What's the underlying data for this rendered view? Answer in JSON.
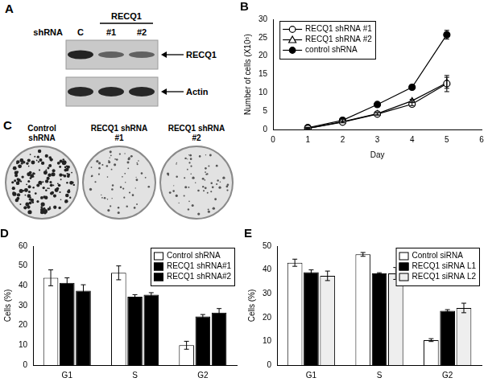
{
  "chart_data": [
    {
      "type": "line",
      "title": "B",
      "x_label": "Day",
      "y_label": "Number of cells (X10⁵)",
      "x": [
        1,
        2,
        3,
        4,
        5
      ],
      "series": [
        {
          "name": "RECQ1 shRNA #1",
          "color": "#000000",
          "marker": "open-circle",
          "values": [
            0.3,
            2.0,
            4.2,
            6.9,
            12.5
          ],
          "errors": [
            0.1,
            0.2,
            0.3,
            0.4,
            2.2
          ]
        },
        {
          "name": "RECQ1 shRNA #2",
          "color": "#000000",
          "marker": "open-triangle",
          "values": [
            0.3,
            2.1,
            4.3,
            7.8,
            12.7
          ],
          "errors": [
            0.1,
            0.2,
            0.3,
            0.4,
            1.5
          ]
        },
        {
          "name": "control shRNA",
          "color": "#000000",
          "marker": "circle",
          "values": [
            0.5,
            2.5,
            6.8,
            11.5,
            25.8
          ],
          "errors": [
            0.1,
            0.2,
            0.3,
            0.3,
            1.2
          ]
        }
      ],
      "xlim": [
        0,
        6
      ],
      "xticks": [
        0,
        1,
        2,
        3,
        4,
        5,
        6
      ],
      "ylim": [
        0,
        30
      ],
      "yticks": [
        0,
        5,
        10,
        15,
        20,
        25,
        30
      ],
      "grid": false,
      "legend": "top-left"
    },
    {
      "type": "bar",
      "title": "D",
      "y_label": "Cells (%)",
      "categories": [
        "G1",
        "S",
        "G2"
      ],
      "series": [
        {
          "name": "Control shRNA",
          "color": "#ffffff",
          "values": [
            44,
            46.5,
            10
          ],
          "errors": [
            4,
            3.5,
            2
          ]
        },
        {
          "name": "RECQ1 shRNA#1",
          "color": "#000000",
          "values": [
            41.5,
            34.5,
            24.5
          ],
          "errors": [
            2.5,
            1,
            1
          ]
        },
        {
          "name": "RECQ1 shRNA#2",
          "color": "#000000",
          "values": [
            37.5,
            35.5,
            26.5
          ],
          "errors": [
            3,
            1,
            2
          ]
        }
      ],
      "ylim": [
        0,
        60
      ],
      "yticks": [
        0,
        10,
        20,
        30,
        40,
        50,
        60
      ],
      "grid": false,
      "legend": "top-right"
    },
    {
      "type": "bar",
      "title": "E",
      "y_label": "Cells (%)",
      "categories": [
        "G1",
        "S",
        "G2"
      ],
      "series": [
        {
          "name": "Control siRNA",
          "color": "#ffffff",
          "values": [
            43,
            46.5,
            10.5
          ],
          "errors": [
            1.5,
            0.8,
            0.6
          ]
        },
        {
          "name": "RECQ1 siRNA L1",
          "color": "#000000",
          "values": [
            39,
            38.5,
            22.8
          ],
          "errors": [
            1,
            0.3,
            0.5
          ]
        },
        {
          "name": "RECQ1 siRNA L2",
          "color": "#eeeeee",
          "values": [
            37.5,
            38.5,
            24
          ],
          "errors": [
            2,
            2.5,
            2
          ]
        }
      ],
      "ylim": [
        0,
        50
      ],
      "yticks": [
        0,
        10,
        20,
        30,
        40,
        50
      ],
      "grid": false,
      "legend": "top-right"
    }
  ],
  "blot": {
    "title": "A",
    "row_label": "shRNA",
    "lanes": [
      "C",
      "#1",
      "#2"
    ],
    "lane_group": {
      "label": "RECQ1",
      "lanes": [
        "#1",
        "#2"
      ]
    },
    "bands": [
      "RECQ1",
      "Actin"
    ]
  },
  "colony_assay": {
    "title": "C",
    "dishes": [
      "Control shRNA",
      "RECQ1 shRNA #1",
      "RECQ1 shRNA #2"
    ]
  }
}
